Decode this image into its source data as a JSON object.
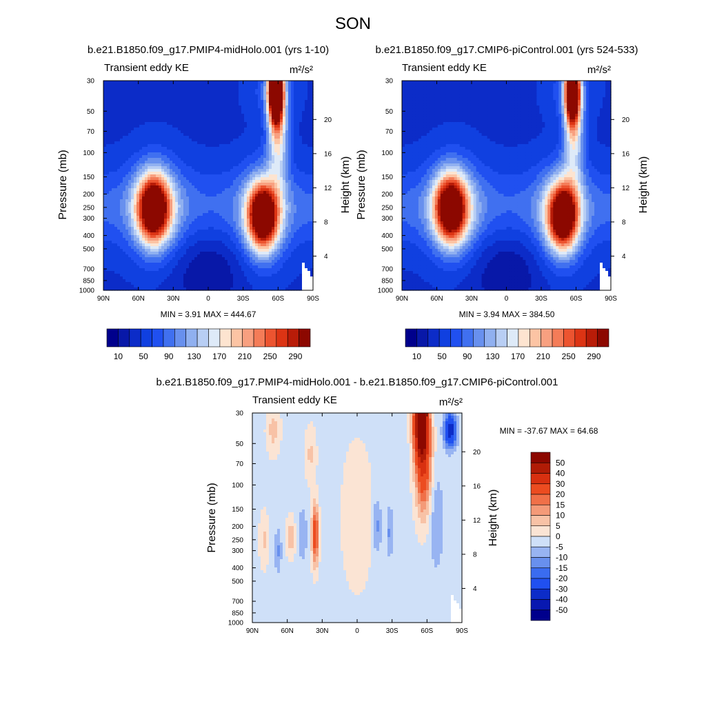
{
  "figure": {
    "title": "SON"
  },
  "colors": {
    "abs_scale": [
      "#00008c",
      "#0818a8",
      "#0c2cc8",
      "#1040e0",
      "#2050f0",
      "#4070f0",
      "#6890ee",
      "#90b0f0",
      "#b8cef4",
      "#deeaf8",
      "#fde4d0",
      "#fcc4a4",
      "#f8a080",
      "#f47c58",
      "#ec5430",
      "#dc3414",
      "#b81c08",
      "#8c0800"
    ],
    "diff_scale": [
      "#00008c",
      "#0818b0",
      "#0c2cc8",
      "#2050f0",
      "#3a6cf0",
      "#6890ee",
      "#98b4f2",
      "#cfe0f8",
      "#fbe4d4",
      "#f8c2a6",
      "#f49a78",
      "#f07048",
      "#ec4c20",
      "#d83010",
      "#b01c06",
      "#8c0800"
    ]
  },
  "chart_data": [
    {
      "type": "heatmap",
      "subtitle": "b.e21.B1850.f09_g17.PMIP4-midHolo.001 (yrs 1-10)",
      "left_label": "Transient eddy KE",
      "right_label": "m²/s²",
      "xlabel": "",
      "ylabel": "Pressure (mb)",
      "ylabel_right": "Height (km)",
      "x_ticks": [
        "90N",
        "60N",
        "30N",
        "0",
        "30S",
        "60S",
        "90S"
      ],
      "x_values": [
        90,
        60,
        30,
        0,
        -30,
        -60,
        -90
      ],
      "xlim": [
        90,
        -90
      ],
      "y_ticks": [
        "30",
        "50",
        "70",
        "100",
        "150",
        "200",
        "250",
        "300",
        "400",
        "500",
        "700",
        "850",
        "1000"
      ],
      "y_values": [
        30,
        50,
        70,
        100,
        150,
        200,
        250,
        300,
        400,
        500,
        700,
        850,
        1000
      ],
      "ylim": [
        1000,
        30
      ],
      "y_scale": "log",
      "height_ticks": [
        "4",
        "8",
        "12",
        "16",
        "20"
      ],
      "height_values": [
        4,
        8,
        12,
        16,
        20
      ],
      "stats": "MIN =   3.91  MAX = 444.67",
      "colorbar_labels": [
        "10",
        "50",
        "90",
        "130",
        "170",
        "210",
        "250",
        "290"
      ],
      "features": [
        {
          "lat": 47,
          "p": 255,
          "peak": 290,
          "wlat": 13,
          "wlogp": 0.23
        },
        {
          "lat": -47,
          "p": 290,
          "peak": 295,
          "wlat": 12,
          "wlogp": 0.22
        },
        {
          "lat": -58,
          "p": 35,
          "peak": 445,
          "wlat": 6,
          "wlogp": 0.22
        },
        {
          "lat": -60,
          "p": 70,
          "peak": 160,
          "wlat": 9,
          "wlogp": 0.38
        }
      ]
    },
    {
      "type": "heatmap",
      "subtitle": "b.e21.B1850.f09_g17.CMIP6-piControl.001 (yrs 524-533)",
      "left_label": "Transient eddy KE",
      "right_label": "m²/s²",
      "xlabel": "",
      "ylabel": "Pressure (mb)",
      "ylabel_right": "Height (km)",
      "x_ticks": [
        "90N",
        "60N",
        "30N",
        "0",
        "30S",
        "60S",
        "90S"
      ],
      "x_values": [
        90,
        60,
        30,
        0,
        -30,
        -60,
        -90
      ],
      "xlim": [
        90,
        -90
      ],
      "y_ticks": [
        "30",
        "50",
        "70",
        "100",
        "150",
        "200",
        "250",
        "300",
        "400",
        "500",
        "700",
        "850",
        "1000"
      ],
      "y_values": [
        30,
        50,
        70,
        100,
        150,
        200,
        250,
        300,
        400,
        500,
        700,
        850,
        1000
      ],
      "ylim": [
        1000,
        30
      ],
      "y_scale": "log",
      "height_ticks": [
        "4",
        "8",
        "12",
        "16",
        "20"
      ],
      "height_values": [
        4,
        8,
        12,
        16,
        20
      ],
      "stats": "MIN =   3.94  MAX = 384.50",
      "colorbar_labels": [
        "10",
        "50",
        "90",
        "130",
        "170",
        "210",
        "250",
        "290"
      ],
      "features": [
        {
          "lat": 48,
          "p": 255,
          "peak": 285,
          "wlat": 13,
          "wlogp": 0.23
        },
        {
          "lat": -49,
          "p": 290,
          "peak": 290,
          "wlat": 12,
          "wlogp": 0.22
        },
        {
          "lat": -57,
          "p": 35,
          "peak": 385,
          "wlat": 6,
          "wlogp": 0.22
        },
        {
          "lat": -58,
          "p": 70,
          "peak": 150,
          "wlat": 9,
          "wlogp": 0.38
        }
      ]
    },
    {
      "type": "heatmap",
      "subtitle": "b.e21.B1850.f09_g17.PMIP4-midHolo.001 - b.e21.B1850.f09_g17.CMIP6-piControl.001",
      "left_label": "Transient eddy KE",
      "right_label": "m²/s²",
      "xlabel": "",
      "ylabel": "Pressure (mb)",
      "ylabel_right": "Height (km)",
      "x_ticks": [
        "90N",
        "60N",
        "30N",
        "0",
        "30S",
        "60S",
        "90S"
      ],
      "x_values": [
        90,
        60,
        30,
        0,
        -30,
        -60,
        -90
      ],
      "xlim": [
        90,
        -90
      ],
      "y_ticks": [
        "30",
        "50",
        "70",
        "100",
        "150",
        "200",
        "250",
        "300",
        "400",
        "500",
        "700",
        "850",
        "1000"
      ],
      "y_values": [
        30,
        50,
        70,
        100,
        150,
        200,
        250,
        300,
        400,
        500,
        700,
        850,
        1000
      ],
      "ylim": [
        1000,
        30
      ],
      "y_scale": "log",
      "height_ticks": [
        "4",
        "8",
        "12",
        "16",
        "20"
      ],
      "height_values": [
        4,
        8,
        12,
        16,
        20
      ],
      "stats": "MIN = -37.67  MAX =  64.68",
      "colorbar_labels": [
        "50",
        "40",
        "30",
        "20",
        "15",
        "10",
        "5",
        "0",
        "-5",
        "-10",
        "-15",
        "-20",
        "-30",
        "-40",
        "-50"
      ],
      "colorbar_levels": [
        -50,
        -40,
        -30,
        -20,
        -15,
        -10,
        -5,
        0,
        5,
        10,
        15,
        20,
        30,
        40,
        50
      ],
      "features": [
        {
          "lat": -55,
          "p": 35,
          "peak": 65,
          "wlat": 6,
          "wlogp": 0.25
        },
        {
          "lat": -57,
          "p": 75,
          "peak": 28,
          "wlat": 7,
          "wlogp": 0.35
        },
        {
          "lat": -80,
          "p": 40,
          "peak": -35,
          "wlat": 5,
          "wlogp": 0.12
        },
        {
          "lat": 36,
          "p": 230,
          "peak": 28,
          "wlat": 3,
          "wlogp": 0.22
        },
        {
          "lat": 57,
          "p": 240,
          "peak": 10,
          "wlat": 4,
          "wlogp": 0.15
        },
        {
          "lat": 72,
          "p": 40,
          "peak": 9,
          "wlat": 6,
          "wlogp": 0.18
        },
        {
          "lat": 40,
          "p": 60,
          "peak": 8,
          "wlat": 5,
          "wlogp": 0.2
        },
        {
          "lat": 0,
          "p": 170,
          "peak": 5,
          "wlat": 15,
          "wlogp": 0.6
        },
        {
          "lat": 47,
          "p": 230,
          "peak": -8,
          "wlat": 4,
          "wlogp": 0.18
        },
        {
          "lat": 68,
          "p": 300,
          "peak": -9,
          "wlat": 3,
          "wlogp": 0.15
        },
        {
          "lat": -17,
          "p": 200,
          "peak": -10,
          "wlat": 4,
          "wlogp": 0.2
        },
        {
          "lat": -28,
          "p": 220,
          "peak": -9,
          "wlat": 3,
          "wlogp": 0.18
        },
        {
          "lat": -68,
          "p": 180,
          "peak": -8,
          "wlat": 6,
          "wlogp": 0.35
        },
        {
          "lat": 80,
          "p": 250,
          "peak": 8,
          "wlat": 4,
          "wlogp": 0.2
        }
      ]
    }
  ]
}
